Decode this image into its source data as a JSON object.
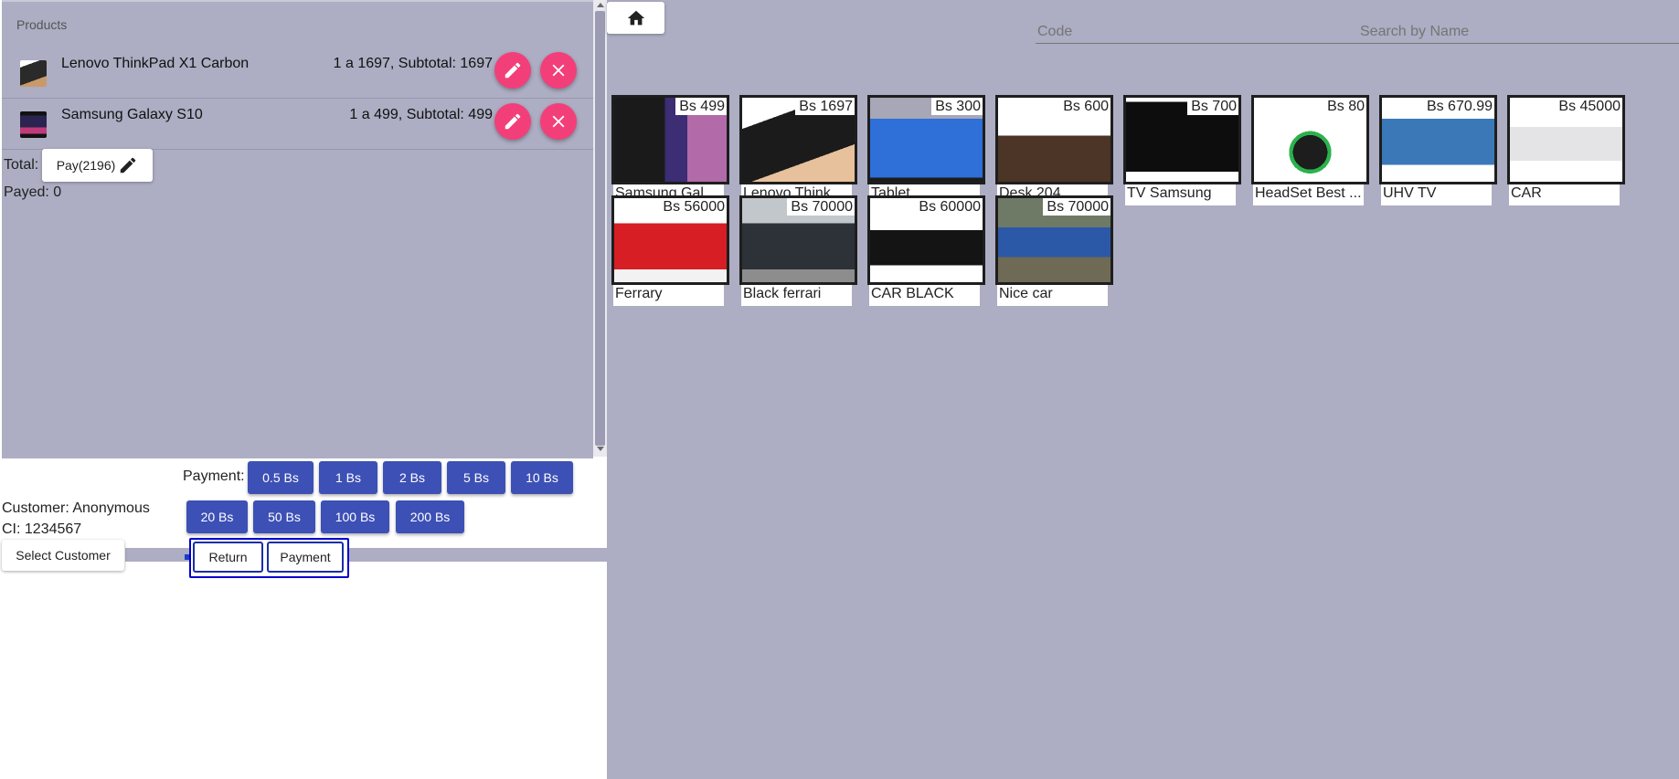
{
  "cart": {
    "header": "Products",
    "items": [
      {
        "name": "Lenovo ThinkPad X1 Carbon",
        "subtotal_text": "1 a 1697, Subtotal: 1697"
      },
      {
        "name": "Samsung Galaxy S10",
        "subtotal_text": "1 a 499, Subtotal: 499"
      }
    ],
    "total_label": "Total:",
    "pay_button_label": "Pay(2196)",
    "payed_text": "Payed: 0"
  },
  "payment": {
    "label": "Payment:",
    "coins": [
      "0.5 Bs",
      "1 Bs",
      "2 Bs",
      "5 Bs",
      "10 Bs",
      "20 Bs",
      "50 Bs",
      "100 Bs",
      "200 Bs"
    ]
  },
  "customer": {
    "name_line": "Customer: Anonymous",
    "ci_line": "CI: 1234567",
    "select_button": "Select Customer"
  },
  "actions": {
    "return_label": "Return",
    "payment_label": "Payment"
  },
  "search": {
    "code_placeholder": "Code",
    "name_placeholder": "Search by Name"
  },
  "catalog": [
    {
      "name": "Samsung Gal...",
      "price": "Bs 499"
    },
    {
      "name": "Lenovo Think...",
      "price": "Bs 1697"
    },
    {
      "name": "Tablet",
      "price": "Bs 300"
    },
    {
      "name": "Desk 204",
      "price": "Bs 600"
    },
    {
      "name": "TV Samsung",
      "price": "Bs 700"
    },
    {
      "name": "HeadSet Best ...",
      "price": "Bs 80"
    },
    {
      "name": "UHV TV",
      "price": "Bs 670.99"
    },
    {
      "name": "CAR",
      "price": "Bs 45000"
    },
    {
      "name": "Ferrary",
      "price": "Bs 56000"
    },
    {
      "name": "Black ferrari",
      "price": "Bs 70000"
    },
    {
      "name": "CAR BLACK",
      "price": "Bs 60000"
    },
    {
      "name": "Nice car",
      "price": "Bs 70000"
    }
  ],
  "colors": {
    "background": "#adadc3",
    "fab": "#f23f7a",
    "coin_button": "#3d50b5",
    "accent_border": "#0000cc"
  },
  "icons": {
    "home": "home-icon",
    "edit": "pencil-icon",
    "delete": "close-icon"
  }
}
